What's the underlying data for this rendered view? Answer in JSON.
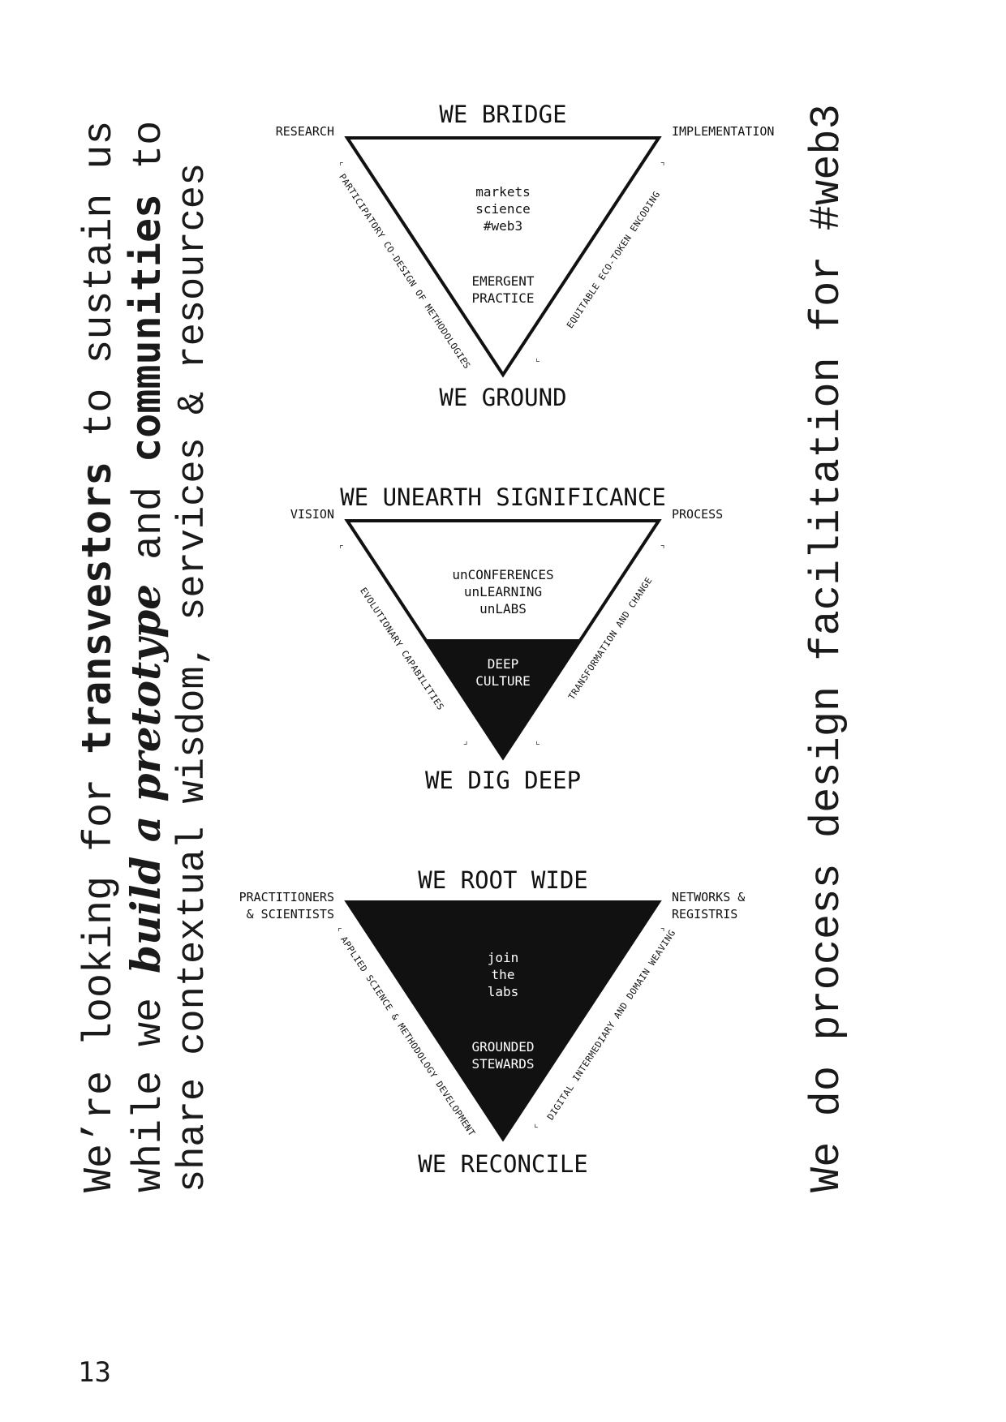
{
  "left_text": {
    "line1": {
      "a": "We’re looking for ",
      "b": "transvestors",
      "c": " to sustain us"
    },
    "line2": {
      "a": "while we ",
      "b": "build a pretotype",
      "c": " and ",
      "d": "communities",
      "e": " to"
    },
    "line3": {
      "a": "share contextual wisdom, services & resources"
    }
  },
  "right_text": "We do process design facilitation for #web3",
  "page_number": "13",
  "diagrams": [
    {
      "top_heading": "WE BRIDGE",
      "bottom_heading": "WE GROUND",
      "left_corner": "RESEARCH",
      "right_corner": "IMPLEMENTATION",
      "inner_top": "markets\nscience\n#web3",
      "inner_bottom": "EMERGENT\nPRACTICE",
      "left_edge": "PARTICIPATORY CO-DESIGN OF METHODOLOGIES",
      "right_edge": "EQUITABLE ECO-TOKEN ENCODING",
      "fill": "white"
    },
    {
      "top_heading": "WE UNEARTH SIGNIFICANCE",
      "bottom_heading": "WE DIG DEEP",
      "left_corner": "VISION",
      "right_corner": "PROCESS",
      "inner_top": "unCONFERENCES\nunLEARNING\nunLABS",
      "inner_bottom": "DEEP\nCULTURE",
      "left_edge": "EVOLUTIONARY CAPABILITIES",
      "right_edge": "TRANSFORMATION AND CHANGE",
      "fill": "half"
    },
    {
      "top_heading": "WE ROOT WIDE",
      "bottom_heading": "WE RECONCILE",
      "left_corner": "PRACTITIONERS\n& SCIENTISTS",
      "right_corner": "NETWORKS &\nREGISTRIS",
      "inner_top": "join\nthe\nlabs",
      "inner_bottom": "GROUNDED\nSTEWARDS",
      "left_edge": "APPLIED SCIENCE & METHODOLOGY DEVELOPMENT",
      "right_edge": "DIGITAL INTERMEDIARY AND DOMAIN WEAVING",
      "fill": "black"
    }
  ],
  "colors": {
    "ink": "#111111",
    "paper": "#ffffff"
  }
}
